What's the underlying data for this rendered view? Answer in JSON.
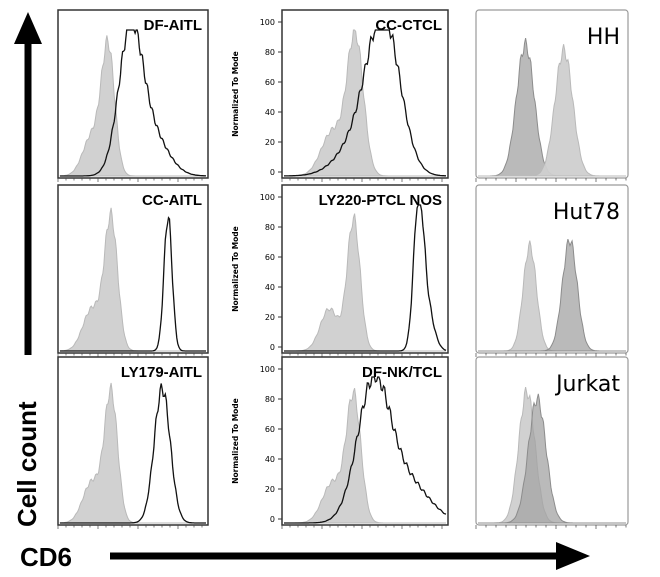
{
  "figure": {
    "y_axis_label": "Cell count",
    "x_axis_label": "CD6"
  },
  "chart_data": [
    {
      "type": "area",
      "panel": "DF-AITL",
      "title": "DF-AITL",
      "ylabel": "",
      "yticks": [],
      "series": [
        {
          "style": "filled-light",
          "peak": 0.33,
          "width": 0.045,
          "height": 0.86,
          "shoulder": 0.22
        },
        {
          "style": "outline",
          "peak": 0.48,
          "width": 0.08,
          "height": 0.92,
          "shoulder": 0.62
        }
      ]
    },
    {
      "type": "area",
      "panel": "CC-CTCL",
      "title": "CC-CTCL",
      "ylabel": "Normalized To Mode",
      "yticks": [
        "0",
        "20",
        "40",
        "60",
        "80",
        "100"
      ],
      "series": [
        {
          "style": "filled-light",
          "peak": 0.44,
          "width": 0.05,
          "height": 0.95,
          "shoulder": 0.3
        },
        {
          "style": "outline",
          "peak": 0.62,
          "width": 0.1,
          "height": 0.9,
          "shoulder": 0.5
        }
      ]
    },
    {
      "type": "area",
      "panel": "HH",
      "title": "HH",
      "ylabel": "",
      "yticks": [],
      "series": [
        {
          "style": "filled-dark",
          "peak": 0.32,
          "width": 0.06,
          "height": 0.9
        },
        {
          "style": "filled-light",
          "peak": 0.58,
          "width": 0.06,
          "height": 0.86
        }
      ]
    },
    {
      "type": "area",
      "panel": "CC-AITL",
      "title": "CC-AITL",
      "ylabel": "",
      "yticks": [],
      "series": [
        {
          "style": "filled-light",
          "peak": 0.35,
          "width": 0.045,
          "height": 0.9,
          "shoulder": 0.22
        },
        {
          "style": "outline",
          "peak": 0.74,
          "width": 0.028,
          "height": 0.92
        }
      ]
    },
    {
      "type": "area",
      "panel": "LY220-PTCL NOS",
      "title": "LY220-PTCL NOS",
      "ylabel": "Normalized To Mode",
      "yticks": [
        "0",
        "20",
        "40",
        "60",
        "80",
        "100"
      ],
      "series": [
        {
          "style": "filled-light",
          "peak": 0.43,
          "width": 0.04,
          "height": 0.9,
          "shoulder": 0.28
        },
        {
          "style": "outline",
          "peak": 0.83,
          "width": 0.03,
          "height": 0.95,
          "shoulder": 0.88
        }
      ]
    },
    {
      "type": "area",
      "panel": "Hut78",
      "title": "Hut78",
      "ylabel": "",
      "yticks": [],
      "series": [
        {
          "style": "filled-light",
          "peak": 0.35,
          "width": 0.045,
          "height": 0.72
        },
        {
          "style": "filled-dark",
          "peak": 0.62,
          "width": 0.05,
          "height": 0.76
        }
      ]
    },
    {
      "type": "area",
      "panel": "LY179-AITL",
      "title": "LY179-AITL",
      "ylabel": "",
      "yticks": [],
      "series": [
        {
          "style": "filled-light",
          "peak": 0.35,
          "width": 0.045,
          "height": 0.88,
          "shoulder": 0.22
        },
        {
          "style": "outline",
          "peak": 0.7,
          "width": 0.055,
          "height": 0.92
        }
      ]
    },
    {
      "type": "area",
      "panel": "DF-NK/TCL",
      "title": "DF-NK/TCL",
      "ylabel": "Normalized To Mode",
      "yticks": [
        "0",
        "20",
        "40",
        "60",
        "80",
        "100"
      ],
      "series": [
        {
          "style": "filled-light",
          "peak": 0.43,
          "width": 0.045,
          "height": 0.86,
          "shoulder": 0.3
        },
        {
          "style": "outline",
          "peak": 0.55,
          "width": 0.1,
          "height": 0.9,
          "shoulder": 0.75
        }
      ]
    },
    {
      "type": "area",
      "panel": "Jurkat",
      "title": "Jurkat",
      "ylabel": "",
      "yticks": [],
      "series": [
        {
          "style": "filled-light",
          "peak": 0.33,
          "width": 0.055,
          "height": 0.9
        },
        {
          "style": "filled-dark",
          "peak": 0.4,
          "width": 0.06,
          "height": 0.85
        }
      ]
    }
  ],
  "colors": {
    "fill_light": "#cfcfcf",
    "fill_light_stroke": "#b9b9b9",
    "fill_dark": "#a3a3a3",
    "fill_dark_stroke": "#8c8c8c",
    "outline": "#111111",
    "frame": "#333333",
    "text": "#000000"
  }
}
